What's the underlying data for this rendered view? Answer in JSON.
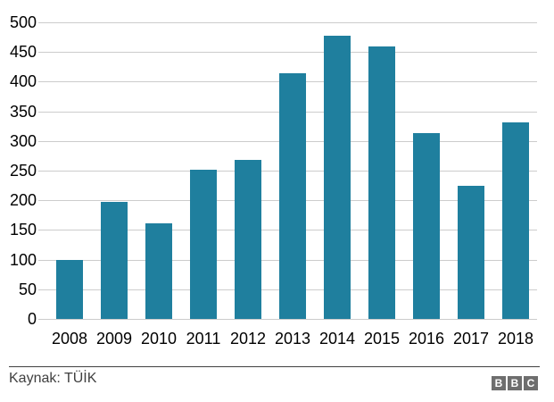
{
  "chart_data": {
    "type": "bar",
    "title": "",
    "xlabel": "",
    "ylabel": "",
    "categories": [
      "2008",
      "2009",
      "2010",
      "2011",
      "2012",
      "2013",
      "2014",
      "2015",
      "2016",
      "2017",
      "2018"
    ],
    "values": [
      100,
      197,
      161,
      252,
      268,
      414,
      477,
      460,
      313,
      224,
      331
    ],
    "ylim": [
      0,
      500
    ],
    "yticks": [
      0,
      50,
      100,
      150,
      200,
      250,
      300,
      350,
      400,
      450,
      500
    ],
    "grid": true,
    "legend": null,
    "bar_color": "#1f7f9e",
    "gridline_color": "#cccccc",
    "tick_label_color": "#000000"
  },
  "footer": {
    "source_label": "Kaynak: TÜİK",
    "source_color": "#404040",
    "divider_color": "#404040",
    "logo": {
      "name": "BBC",
      "letters": [
        "B",
        "B",
        "C"
      ],
      "block_color": "#6e6e6e",
      "letter_color": "#ffffff"
    }
  }
}
